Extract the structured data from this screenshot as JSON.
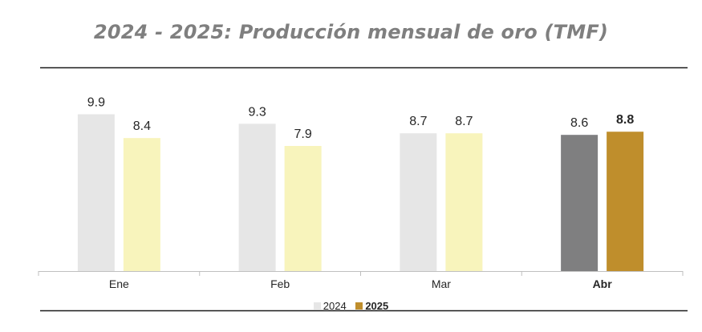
{
  "chart_data": {
    "type": "bar",
    "title": "2024 - 2025: Producción mensual de oro  (TMF)",
    "xlabel": "",
    "ylabel": "",
    "categories": [
      "Ene",
      "Feb",
      "Mar",
      "Abr"
    ],
    "highlight_category": "Abr",
    "ylim": [
      0,
      11.8
    ],
    "grid": false,
    "legend_position": "bottom",
    "series": [
      {
        "name": "2024",
        "values": [
          9.9,
          9.3,
          8.7,
          8.6
        ],
        "labels": [
          "9.9",
          "9.3",
          "8.7",
          "8.6"
        ],
        "color": "#e6e6e6",
        "highlight_color": "#7f7f80"
      },
      {
        "name": "2025",
        "values": [
          8.4,
          7.9,
          8.7,
          8.8
        ],
        "labels": [
          "8.4",
          "7.9",
          "8.7",
          "8.8"
        ],
        "color": "#f8f4bc",
        "highlight_color": "#bf8e2c"
      }
    ],
    "legend": [
      {
        "name": "2024",
        "color": "#e6e6e6",
        "bold": false
      },
      {
        "name": "2025",
        "color": "#bf8e2c",
        "bold": true
      }
    ]
  }
}
